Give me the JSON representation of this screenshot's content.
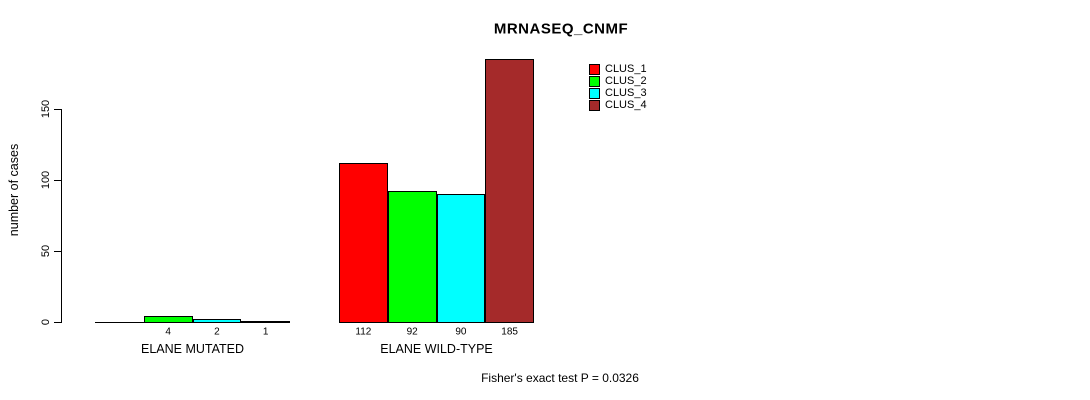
{
  "title": "MRNASEQ_CNMF",
  "footer": "Fisher's exact test P = 0.0326",
  "chart_data": {
    "type": "bar",
    "title": "MRNASEQ_CNMF",
    "xlabel": "",
    "ylabel": "number of cases",
    "ylim": [
      0,
      185
    ],
    "yticks": [
      0,
      50,
      100,
      150
    ],
    "grid": false,
    "legend_position": "top-right-inside",
    "categories": [
      "ELANE MUTATED",
      "ELANE WILD-TYPE"
    ],
    "series": [
      {
        "name": "CLUS_1",
        "color": "#ff0000",
        "values": [
          0,
          112
        ]
      },
      {
        "name": "CLUS_2",
        "color": "#00ff00",
        "values": [
          4,
          92
        ]
      },
      {
        "name": "CLUS_3",
        "color": "#00ffff",
        "values": [
          2,
          90
        ]
      },
      {
        "name": "CLUS_4",
        "color": "#a52a2a",
        "values": [
          1,
          185
        ]
      }
    ],
    "bar_value_labels": {
      "ELANE MUTATED": [
        "",
        "4",
        "2",
        "1"
      ],
      "ELANE WILD-TYPE": [
        "112",
        "92",
        "90",
        "185"
      ]
    },
    "annotation": "Fisher's exact test P = 0.0326",
    "colors": {
      "bar_border": "#000000",
      "axis": "#000000",
      "text": "#000000",
      "background": "#ffffff"
    }
  }
}
